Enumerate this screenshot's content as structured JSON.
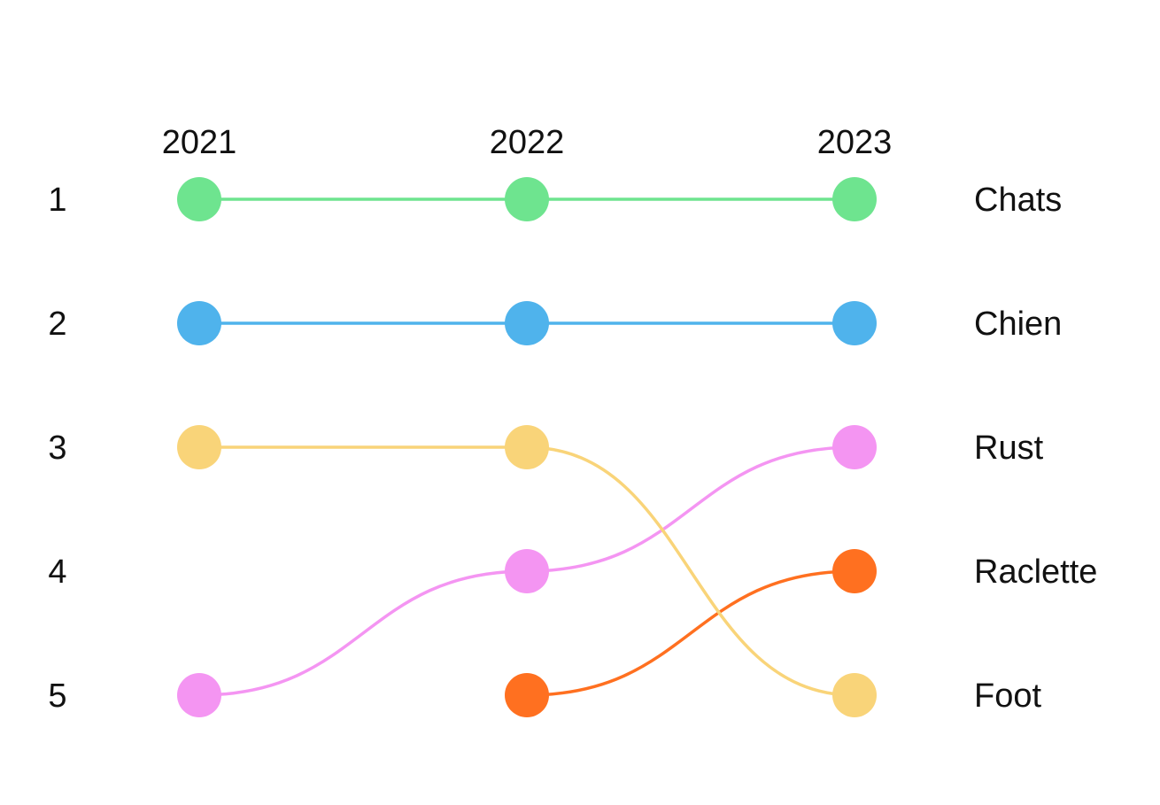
{
  "chart_data": {
    "type": "line",
    "subtype": "bump",
    "x": [
      "2021",
      "2022",
      "2023"
    ],
    "ranks": [
      "1",
      "2",
      "3",
      "4",
      "5"
    ],
    "y_reversed": true,
    "grid": false,
    "legend": "none",
    "series": [
      {
        "name": "Chats",
        "color": "#6ee48f",
        "values": [
          1,
          1,
          1
        ]
      },
      {
        "name": "Chien",
        "color": "#4fb3ec",
        "values": [
          2,
          2,
          2
        ]
      },
      {
        "name": "Rust",
        "color": "#f495f2",
        "values": [
          5,
          4,
          3
        ]
      },
      {
        "name": "Raclette",
        "color": "#ff7020",
        "values": [
          null,
          5,
          4
        ]
      },
      {
        "name": "Foot",
        "color": "#f9d479",
        "values": [
          3,
          3,
          5
        ]
      }
    ]
  }
}
